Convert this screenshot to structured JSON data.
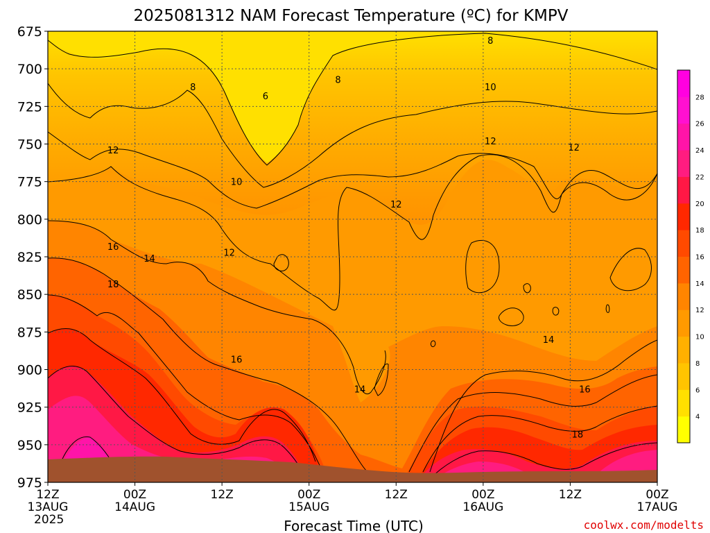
{
  "chart_data": {
    "type": "heatmap",
    "title": "2025081312 NAM Forecast Temperature (ºC) for KMPV",
    "xlabel": "Forecast Time (UTC)",
    "credit": "coolwx.com/modelts",
    "y_axis": {
      "ticks": [
        "675",
        "700",
        "725",
        "750",
        "775",
        "800",
        "825",
        "850",
        "875",
        "900",
        "925",
        "950",
        "975"
      ],
      "range": [
        975,
        675
      ]
    },
    "x_axis": {
      "ticks": [
        {
          "h": 0,
          "line1": "12Z",
          "line2": "13AUG",
          "line3": "2025"
        },
        {
          "h": 12,
          "line1": "00Z",
          "line2": "14AUG",
          "line3": ""
        },
        {
          "h": 24,
          "line1": "12Z",
          "line2": "",
          "line3": ""
        },
        {
          "h": 36,
          "line1": "00Z",
          "line2": "15AUG",
          "line3": ""
        },
        {
          "h": 48,
          "line1": "12Z",
          "line2": "",
          "line3": ""
        },
        {
          "h": 60,
          "line1": "00Z",
          "line2": "16AUG",
          "line3": ""
        },
        {
          "h": 72,
          "line1": "12Z",
          "line2": "",
          "line3": ""
        },
        {
          "h": 84,
          "line1": "00Z",
          "line2": "17AUG",
          "line3": ""
        }
      ],
      "range_hours": [
        0,
        84
      ]
    },
    "colorbar": {
      "labels": [
        "4",
        "6",
        "8",
        "10",
        "12",
        "14",
        "16",
        "18",
        "20",
        "22",
        "24",
        "26",
        "28"
      ],
      "colors": [
        "#FFFF00",
        "#FFE000",
        "#FFC400",
        "#FFB000",
        "#FF9A00",
        "#FF8500",
        "#FF6400",
        "#FF4A00",
        "#FF2800",
        "#FF1845",
        "#FF1C80",
        "#FF14A8",
        "#FF10D0",
        "#FF00E0"
      ]
    },
    "contour_labels": [
      {
        "text": "8",
        "h": 20.0,
        "p": 712
      },
      {
        "text": "6",
        "h": 30.0,
        "p": 718
      },
      {
        "text": "8",
        "h": 40.0,
        "p": 707
      },
      {
        "text": "8",
        "h": 61.0,
        "p": 681
      },
      {
        "text": "10",
        "h": 61.0,
        "p": 712
      },
      {
        "text": "12",
        "h": 9.0,
        "p": 754
      },
      {
        "text": "10",
        "h": 26.0,
        "p": 775
      },
      {
        "text": "12",
        "h": 61.0,
        "p": 748
      },
      {
        "text": "12",
        "h": 72.5,
        "p": 752
      },
      {
        "text": "12",
        "h": 48.0,
        "p": 790
      },
      {
        "text": "16",
        "h": 9.0,
        "p": 818
      },
      {
        "text": "14",
        "h": 14.0,
        "p": 826
      },
      {
        "text": "12",
        "h": 25.0,
        "p": 822
      },
      {
        "text": "18",
        "h": 9.0,
        "p": 843
      },
      {
        "text": "16",
        "h": 26.0,
        "p": 893
      },
      {
        "text": "14",
        "h": 43.0,
        "p": 913
      },
      {
        "text": "14",
        "h": 69.0,
        "p": 880
      },
      {
        "text": "16",
        "h": 74.0,
        "p": 913
      },
      {
        "text": "18",
        "h": 73.0,
        "p": 943
      }
    ]
  }
}
